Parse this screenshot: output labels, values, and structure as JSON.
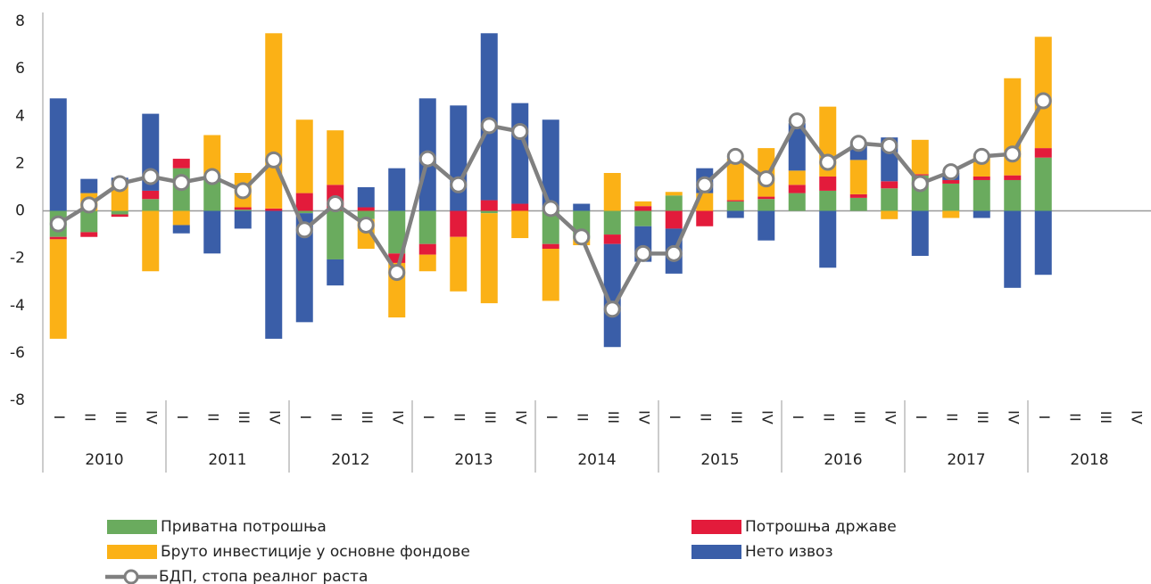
{
  "chart_data": {
    "type": "bar",
    "categories": [
      "I",
      "II",
      "III",
      "IV",
      "I",
      "II",
      "III",
      "IV",
      "I",
      "II",
      "III",
      "IV",
      "I",
      "II",
      "III",
      "IV",
      "I",
      "II",
      "III",
      "IV",
      "I",
      "II",
      "III",
      "IV",
      "I",
      "II",
      "III",
      "IV",
      "I",
      "II",
      "III",
      "IV",
      "I",
      "II",
      "III",
      "IV"
    ],
    "years": [
      "2010",
      "2011",
      "2012",
      "2013",
      "2014",
      "2015",
      "2016",
      "2017",
      "2018"
    ],
    "ylim": [
      -8,
      8
    ],
    "yticks": [
      -8,
      -6,
      -4,
      -2,
      0,
      2,
      4,
      6,
      8
    ],
    "series": [
      {
        "name": "Приватна потрошња",
        "color": "#6aab5e",
        "values": [
          -1.1,
          -0.9,
          -0.15,
          0.5,
          1.8,
          1.5,
          0.05,
          0,
          -0.1,
          -2.05,
          -0.35,
          -1.8,
          -1.4,
          0,
          -0.1,
          0,
          -1.4,
          -1.2,
          -1.0,
          -0.65,
          0.65,
          0,
          0.4,
          0.5,
          0.75,
          0.85,
          0.55,
          0.95,
          1.5,
          1.15,
          1.3,
          1.3,
          2.25,
          null,
          null,
          null
        ]
      },
      {
        "name": "Потрошња државе",
        "color": "#e31b3b",
        "values": [
          -0.1,
          -0.2,
          -0.1,
          0.35,
          0.4,
          0,
          0.1,
          0.1,
          0.75,
          1.1,
          0.15,
          -0.4,
          -0.45,
          -1.1,
          0.45,
          0.3,
          -0.2,
          0,
          -0.4,
          0.2,
          -0.75,
          -0.65,
          0.05,
          0.1,
          0.35,
          0.6,
          0.15,
          0.3,
          0.05,
          0.15,
          0.15,
          0.2,
          0.4,
          null,
          null,
          null
        ]
      },
      {
        "name": "Бруто инвестиције у основне фондове",
        "color": "#fbb116",
        "values": [
          -4.2,
          0.75,
          1.1,
          -2.55,
          -0.6,
          1.7,
          1.45,
          7.4,
          3.1,
          2.3,
          -1.25,
          -2.3,
          -0.7,
          -2.3,
          -3.8,
          -1.15,
          -2.2,
          -0.25,
          1.6,
          0.2,
          0.15,
          0.75,
          1.75,
          2.05,
          0.6,
          2.95,
          1.45,
          -0.35,
          1.45,
          -0.3,
          0.85,
          4.1,
          4.7,
          null,
          null,
          null
        ]
      },
      {
        "name": "Нето извоз",
        "color": "#3a5ea8",
        "values": [
          4.75,
          0.6,
          0.3,
          3.25,
          -0.35,
          -1.8,
          -0.75,
          -5.4,
          -4.6,
          -1.1,
          0.85,
          1.8,
          4.75,
          4.45,
          7.05,
          4.25,
          3.85,
          0.3,
          -4.35,
          -1.5,
          -1.9,
          1.05,
          -0.3,
          -1.25,
          2.0,
          -2.4,
          0.65,
          1.85,
          -1.9,
          0.3,
          -0.3,
          -3.25,
          -2.7,
          null,
          null,
          null
        ]
      },
      {
        "name": "БДП, стопа реалног раста",
        "type": "line",
        "color": "#808080",
        "values": [
          -0.55,
          0.25,
          1.15,
          1.45,
          1.2,
          1.45,
          0.85,
          2.15,
          -0.8,
          0.3,
          -0.6,
          -2.6,
          2.2,
          1.1,
          3.6,
          3.35,
          0.1,
          -1.1,
          -4.15,
          -1.8,
          -1.8,
          1.1,
          2.3,
          1.35,
          3.8,
          2.05,
          2.85,
          2.75,
          1.15,
          1.65,
          2.3,
          2.4,
          4.65,
          null,
          null,
          null
        ]
      }
    ]
  }
}
